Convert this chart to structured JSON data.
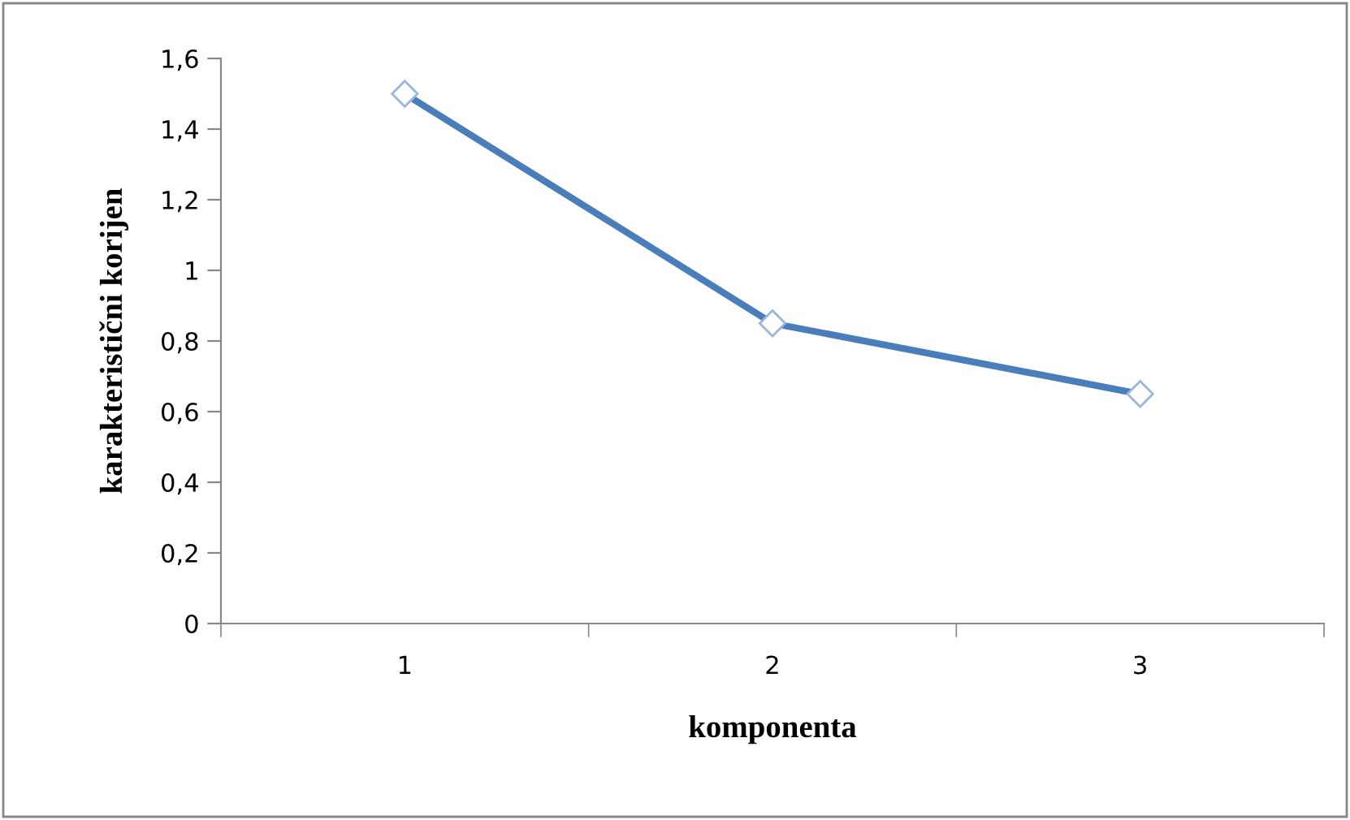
{
  "chart_data": {
    "type": "line",
    "xlabel": "komponenta",
    "ylabel": "karakteristični korijen",
    "categories": [
      "1",
      "2",
      "3"
    ],
    "series": [
      {
        "color": "#4a7ebb",
        "values": [
          1.5,
          0.85,
          0.65
        ]
      }
    ],
    "marker": "diamond",
    "line_style": "solid",
    "grid": false,
    "legend": false,
    "ylim": [
      0,
      1.6
    ],
    "yticks": [
      {
        "value": 0,
        "label": "0"
      },
      {
        "value": 0.2,
        "label": "0,2"
      },
      {
        "value": 0.4,
        "label": "0,4"
      },
      {
        "value": 0.6,
        "label": "0,6"
      },
      {
        "value": 0.8,
        "label": "0,8"
      },
      {
        "value": 1,
        "label": "1"
      },
      {
        "value": 1.2,
        "label": "1,2"
      },
      {
        "value": 1.4,
        "label": "1,4"
      },
      {
        "value": 1.6,
        "label": "1,6"
      }
    ]
  }
}
